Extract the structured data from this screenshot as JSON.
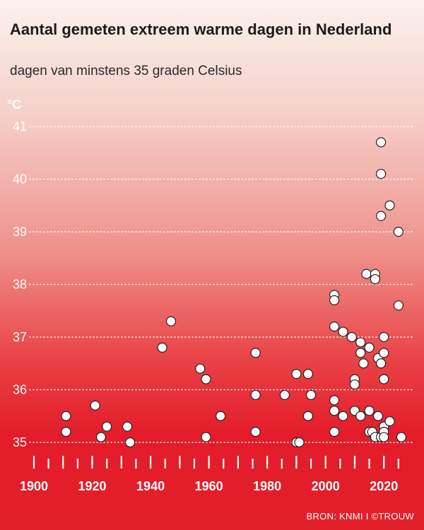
{
  "header": {
    "title": "Aantal gemeten extreem warme dagen in Nederland",
    "subtitle": "dagen van minstens 35 graden Celsius"
  },
  "unit_label": "°C",
  "source": "BRON: KNMI I ©TROUW",
  "colors": {
    "background_top": "#fbf2ee",
    "background_bottom": "#e2202b",
    "point_fill": "#ffffff",
    "point_stroke": "#222222",
    "axis": "#ffffff"
  },
  "chart_data": {
    "type": "scatter",
    "title": "Aantal gemeten extreem warme dagen in Nederland",
    "subtitle": "dagen van minstens 35 graden Celsius",
    "ylabel": "°C",
    "xlim": [
      1900,
      2026
    ],
    "ylim": [
      34.9,
      41.2
    ],
    "grid": true,
    "x_ticks": [
      1900,
      1920,
      1940,
      1960,
      1980,
      2000,
      2020
    ],
    "y_ticks": [
      35,
      36,
      37,
      38,
      39,
      40,
      41
    ],
    "points": [
      {
        "x": 1911,
        "y": 35.5
      },
      {
        "x": 1911,
        "y": 35.2
      },
      {
        "x": 1921,
        "y": 35.7
      },
      {
        "x": 1923,
        "y": 35.1
      },
      {
        "x": 1925,
        "y": 35.3
      },
      {
        "x": 1932,
        "y": 35.3
      },
      {
        "x": 1933,
        "y": 35.0
      },
      {
        "x": 1944,
        "y": 36.8
      },
      {
        "x": 1947,
        "y": 37.3
      },
      {
        "x": 1957,
        "y": 36.4
      },
      {
        "x": 1959,
        "y": 36.2
      },
      {
        "x": 1959,
        "y": 35.1
      },
      {
        "x": 1964,
        "y": 35.5
      },
      {
        "x": 1976,
        "y": 36.7
      },
      {
        "x": 1976,
        "y": 35.9
      },
      {
        "x": 1976,
        "y": 35.2
      },
      {
        "x": 1986,
        "y": 35.9
      },
      {
        "x": 1990,
        "y": 36.3
      },
      {
        "x": 1990,
        "y": 35.0
      },
      {
        "x": 1991,
        "y": 35.0
      },
      {
        "x": 1994,
        "y": 36.3
      },
      {
        "x": 1995,
        "y": 35.9
      },
      {
        "x": 1994,
        "y": 35.5
      },
      {
        "x": 2003,
        "y": 37.8
      },
      {
        "x": 2003,
        "y": 37.7
      },
      {
        "x": 2003,
        "y": 37.2
      },
      {
        "x": 2003,
        "y": 35.8
      },
      {
        "x": 2003,
        "y": 35.6
      },
      {
        "x": 2003,
        "y": 35.2
      },
      {
        "x": 2006,
        "y": 37.1
      },
      {
        "x": 2006,
        "y": 35.5
      },
      {
        "x": 2009,
        "y": 37.0
      },
      {
        "x": 2010,
        "y": 36.2
      },
      {
        "x": 2010,
        "y": 36.1
      },
      {
        "x": 2010,
        "y": 35.6
      },
      {
        "x": 2012,
        "y": 36.9
      },
      {
        "x": 2012,
        "y": 36.7
      },
      {
        "x": 2012,
        "y": 35.5
      },
      {
        "x": 2013,
        "y": 36.5
      },
      {
        "x": 2014,
        "y": 38.2
      },
      {
        "x": 2015,
        "y": 36.8
      },
      {
        "x": 2015,
        "y": 35.6
      },
      {
        "x": 2015,
        "y": 35.2
      },
      {
        "x": 2016,
        "y": 35.2
      },
      {
        "x": 2017,
        "y": 38.2
      },
      {
        "x": 2017,
        "y": 38.1
      },
      {
        "x": 2017,
        "y": 35.1
      },
      {
        "x": 2018,
        "y": 36.6
      },
      {
        "x": 2018,
        "y": 35.5
      },
      {
        "x": 2019,
        "y": 40.7
      },
      {
        "x": 2019,
        "y": 40.1
      },
      {
        "x": 2019,
        "y": 39.3
      },
      {
        "x": 2019,
        "y": 36.5
      },
      {
        "x": 2019,
        "y": 35.1
      },
      {
        "x": 2020,
        "y": 37.0
      },
      {
        "x": 2020,
        "y": 36.7
      },
      {
        "x": 2020,
        "y": 36.2
      },
      {
        "x": 2020,
        "y": 35.3
      },
      {
        "x": 2020,
        "y": 35.2
      },
      {
        "x": 2020,
        "y": 35.1
      },
      {
        "x": 2022,
        "y": 39.5
      },
      {
        "x": 2022,
        "y": 35.4
      },
      {
        "x": 2025,
        "y": 39.0
      },
      {
        "x": 2025,
        "y": 37.6
      },
      {
        "x": 2026,
        "y": 35.1
      }
    ]
  }
}
